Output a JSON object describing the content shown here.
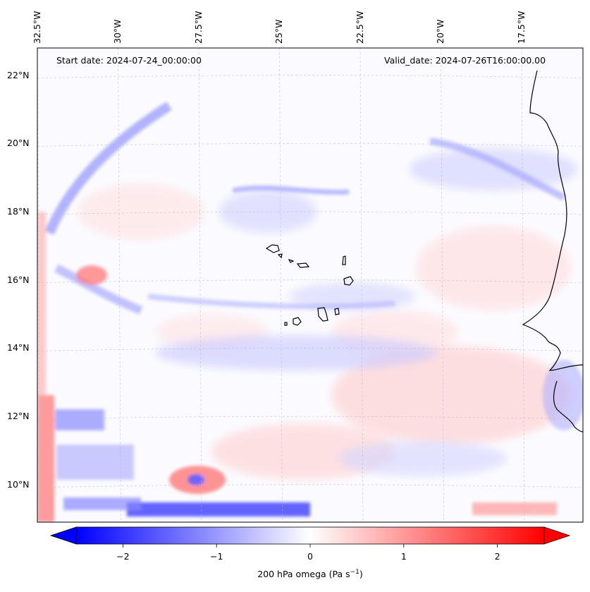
{
  "header": {
    "start_date": "Start date: 2024-07-24_00:00:00",
    "valid_date": "Valid_date: 2024-07-26T16:00:00.00"
  },
  "map": {
    "lon_ticks": [
      -32.5,
      -30,
      -27.5,
      -25,
      -22.5,
      -20,
      -17.5
    ],
    "lon_labels": [
      "32.5°W",
      "30°W",
      "27.5°W",
      "25°W",
      "22.5°W",
      "20°W",
      "17.5°W"
    ],
    "lat_ticks": [
      10,
      12,
      14,
      16,
      18,
      20,
      22
    ],
    "lat_labels": [
      "10°N",
      "12°N",
      "14°N",
      "16°N",
      "18°N",
      "20°N",
      "22°N"
    ],
    "lon_range": [
      -32.5,
      -15.6
    ],
    "lat_range": [
      8.9,
      22.8
    ],
    "field": "200 hPa omega"
  },
  "colorbar": {
    "ticks": [
      -2,
      -1,
      0,
      1,
      2
    ],
    "tick_labels": [
      "−2",
      "−1",
      "0",
      "1",
      "2"
    ],
    "range": [
      -2.5,
      2.5
    ],
    "label_main": "200 hPa omega (Pa s",
    "label_sup": "−1",
    "label_end": ")",
    "colors": {
      "negative": "#0000ff",
      "zero": "#ffffff",
      "positive": "#ff0000"
    }
  }
}
